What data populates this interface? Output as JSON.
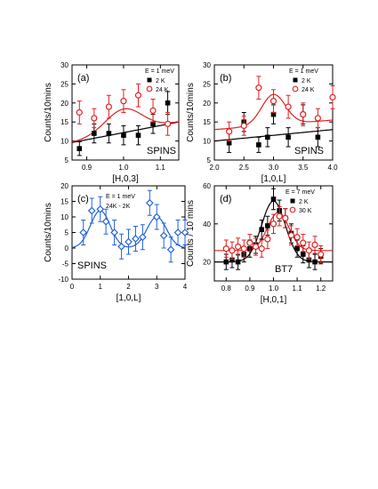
{
  "chart_data": [
    {
      "type": "scatter",
      "panel_label": "(a)",
      "condition_label": "E = 1 meV",
      "instrument_label": "SPINS",
      "xlabel": "[H,0,3]",
      "ylabel": "Counts/10mins",
      "xlim": [
        0.86,
        1.15
      ],
      "ylim": [
        5,
        30
      ],
      "xticks": [
        0.9,
        1.0,
        1.1
      ],
      "xticklabels": [
        "0.9",
        "1.0",
        "1.1"
      ],
      "yticks": [
        5,
        10,
        15,
        20,
        25,
        30
      ],
      "yticklabels": [
        "5",
        "10",
        "15",
        "20",
        "25",
        "30"
      ],
      "legend_position": "top-right",
      "series": [
        {
          "name": "2 K",
          "marker": "filled-square",
          "color": "#000000",
          "x": [
            0.88,
            0.92,
            0.96,
            1.0,
            1.04,
            1.08,
            1.12
          ],
          "y": [
            8.0,
            12.0,
            12.0,
            11.5,
            11.5,
            14.5,
            20.0
          ],
          "err": [
            1.8,
            2.5,
            2.5,
            2.5,
            2.5,
            2.5,
            3.0
          ],
          "fit": {
            "kind": "line",
            "x": [
              0.86,
              1.15
            ],
            "y": [
              9.6,
              15.0
            ]
          }
        },
        {
          "name": "24 K",
          "marker": "open-circle",
          "color": "#e02020",
          "x": [
            0.88,
            0.92,
            0.96,
            1.0,
            1.04,
            1.08,
            1.12
          ],
          "y": [
            17.5,
            16.0,
            19.0,
            20.5,
            22.0,
            18.0,
            14.5
          ],
          "err": [
            3.0,
            2.5,
            3.0,
            3.0,
            3.0,
            3.0,
            3.0
          ],
          "fit": {
            "kind": "gauss",
            "x0": 1.0,
            "sigma": 0.05,
            "amp": 6.2,
            "baseline": [
              9.6,
              15.0
            ]
          }
        }
      ]
    },
    {
      "type": "scatter",
      "panel_label": "(b)",
      "condition_label": "E = 1 meV",
      "instrument_label": "SPINS",
      "xlabel": "[1,0,L]",
      "ylabel": "Counts/10mins",
      "xlim": [
        2.0,
        4.0
      ],
      "ylim": [
        5,
        30
      ],
      "xticks": [
        2.0,
        2.5,
        3.0,
        3.5,
        4.0
      ],
      "xticklabels": [
        "2.0",
        "2.5",
        "3.0",
        "3.5",
        "4.0"
      ],
      "yticks": [
        5,
        10,
        15,
        20,
        25,
        30
      ],
      "yticklabels": [
        "5",
        "10",
        "15",
        "20",
        "25",
        "30"
      ],
      "legend_position": "top-right",
      "series": [
        {
          "name": "2 K",
          "marker": "filled-square",
          "color": "#000000",
          "x": [
            2.25,
            2.5,
            2.75,
            2.9,
            3.0,
            3.25,
            3.5,
            3.75
          ],
          "y": [
            9.5,
            15.0,
            9.0,
            11.0,
            17.0,
            11.0,
            17.0,
            11.0
          ],
          "err": [
            2.5,
            2.5,
            2.0,
            2.5,
            2.5,
            2.5,
            2.5,
            2.5
          ],
          "fit": {
            "kind": "line",
            "x": [
              2.0,
              4.0
            ],
            "y": [
              10.0,
              13.0
            ]
          }
        },
        {
          "name": "24 K",
          "marker": "open-circle",
          "color": "#e02020",
          "x": [
            2.25,
            2.5,
            2.75,
            3.0,
            3.25,
            3.5,
            3.75,
            4.0
          ],
          "y": [
            12.5,
            14.0,
            24.0,
            20.5,
            19.0,
            17.0,
            16.0,
            21.5
          ],
          "err": [
            2.5,
            2.5,
            3.0,
            3.0,
            3.0,
            3.0,
            2.5,
            3.0
          ],
          "fit": {
            "kind": "gauss",
            "x0": 3.0,
            "sigma": 0.2,
            "amp": 8.0,
            "baseline": [
              13.0,
              15.5
            ]
          }
        }
      ]
    },
    {
      "type": "scatter",
      "panel_label": "(c)",
      "condition_label": "E = 1 meV",
      "subtitle_label": "24K - 2K",
      "instrument_label": "SPINS",
      "xlabel": "[1,0,L]",
      "ylabel": "Counts/10mins",
      "xlim": [
        0,
        4
      ],
      "ylim": [
        -10,
        20
      ],
      "xticks": [
        0,
        1,
        2,
        3,
        4
      ],
      "xticklabels": [
        "0",
        "1",
        "2",
        "3",
        "4"
      ],
      "yticks": [
        -10,
        -5,
        0,
        5,
        10,
        15,
        20
      ],
      "yticklabels": [
        "-10",
        "-5",
        "0",
        "5",
        "10",
        "15",
        "20"
      ],
      "legend_position": "top-left",
      "series": [
        {
          "name": "",
          "marker": "open-diamond",
          "color": "#2060e0",
          "x": [
            0.4,
            0.7,
            1.0,
            1.2,
            1.5,
            1.75,
            2.0,
            2.25,
            2.5,
            2.75,
            3.0,
            3.25,
            3.5,
            3.75,
            4.0
          ],
          "y": [
            5.0,
            12.0,
            12.5,
            8.5,
            5.0,
            0.5,
            2.0,
            3.0,
            3.5,
            14.5,
            10.0,
            4.0,
            -0.5,
            5.0,
            5.0
          ],
          "err": [
            4.0,
            4.0,
            4.0,
            4.0,
            4.0,
            4.0,
            4.0,
            4.0,
            4.0,
            4.0,
            4.0,
            4.0,
            4.0,
            4.0,
            4.0
          ],
          "fit": {
            "kind": "double-gauss",
            "centers": [
              1.0,
              3.0
            ],
            "sigma": 0.35,
            "amp": [
              12.0,
              10.0
            ],
            "baseline": 0
          }
        }
      ]
    },
    {
      "type": "scatter",
      "panel_label": "(d)",
      "condition_label": "E = 7 meV",
      "instrument_label": "BT7",
      "xlabel": "[H,0,1]",
      "ylabel": "Counts / 10 mins",
      "xlim": [
        0.75,
        1.25
      ],
      "ylim": [
        10,
        60
      ],
      "xticks": [
        0.8,
        0.9,
        1.0,
        1.1,
        1.2
      ],
      "xticklabels": [
        "0.8",
        "0.9",
        "1.0",
        "1.1",
        "1.2"
      ],
      "yticks": [
        20,
        40,
        60
      ],
      "yticklabels": [
        "20",
        "40",
        "60"
      ],
      "legend_position": "top-right",
      "series": [
        {
          "name": "2 K",
          "marker": "filled-square",
          "color": "#000000",
          "x": [
            0.8,
            0.825,
            0.85,
            0.875,
            0.9,
            0.925,
            0.95,
            0.975,
            1.0,
            1.025,
            1.05,
            1.075,
            1.1,
            1.125,
            1.15,
            1.175,
            1.2
          ],
          "y": [
            20.0,
            21.0,
            20.0,
            24.0,
            27.0,
            29.0,
            37.0,
            39.0,
            53.0,
            47.0,
            43.0,
            35.0,
            27.0,
            24.0,
            21.0,
            20.0,
            23.0
          ],
          "err": [
            4.0,
            4.0,
            4.0,
            4.0,
            4.5,
            4.5,
            5.0,
            5.0,
            5.5,
            5.5,
            5.0,
            5.0,
            4.5,
            4.5,
            4.0,
            4.0,
            4.0
          ],
          "fit": {
            "kind": "gauss",
            "x0": 1.0,
            "sigma": 0.05,
            "amp": 32.0,
            "baseline": [
              20.0,
              20.0
            ]
          }
        },
        {
          "name": "30 K",
          "marker": "open-circle",
          "color": "#e02020",
          "x": [
            0.8,
            0.825,
            0.85,
            0.875,
            0.9,
            0.925,
            0.95,
            0.975,
            1.0,
            1.025,
            1.05,
            1.075,
            1.1,
            1.125,
            1.15,
            1.175,
            1.2
          ],
          "y": [
            27.0,
            26.0,
            28.0,
            27.0,
            30.0,
            28.0,
            27.0,
            32.0,
            40.0,
            44.0,
            43.0,
            34.0,
            33.0,
            30.0,
            26.0,
            29.0,
            24.0
          ],
          "err": [
            4.5,
            4.5,
            4.5,
            4.5,
            4.5,
            4.5,
            4.5,
            5.0,
            5.0,
            5.0,
            5.0,
            5.0,
            4.5,
            4.5,
            4.5,
            4.5,
            4.5
          ],
          "fit": {
            "kind": "gauss",
            "x0": 1.02,
            "sigma": 0.045,
            "amp": 20.0,
            "baseline": [
              26.0,
              26.0
            ]
          }
        }
      ]
    }
  ]
}
